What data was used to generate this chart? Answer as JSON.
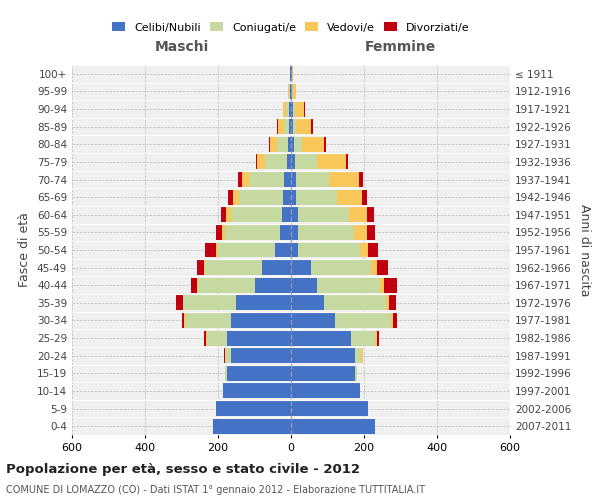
{
  "age_groups": [
    "0-4",
    "5-9",
    "10-14",
    "15-19",
    "20-24",
    "25-29",
    "30-34",
    "35-39",
    "40-44",
    "45-49",
    "50-54",
    "55-59",
    "60-64",
    "65-69",
    "70-74",
    "75-79",
    "80-84",
    "85-89",
    "90-94",
    "95-99",
    "100+"
  ],
  "birth_years": [
    "2007-2011",
    "2002-2006",
    "1997-2001",
    "1992-1996",
    "1987-1991",
    "1982-1986",
    "1977-1981",
    "1972-1976",
    "1967-1971",
    "1962-1966",
    "1957-1961",
    "1952-1956",
    "1947-1951",
    "1942-1946",
    "1937-1941",
    "1932-1936",
    "1927-1931",
    "1922-1926",
    "1917-1921",
    "1912-1916",
    "≤ 1911"
  ],
  "maschi": {
    "celibi": [
      215,
      205,
      185,
      175,
      165,
      175,
      165,
      150,
      100,
      80,
      45,
      30,
      25,
      22,
      20,
      12,
      8,
      5,
      5,
      3,
      2
    ],
    "coniugati": [
      0,
      0,
      0,
      5,
      15,
      55,
      125,
      145,
      155,
      155,
      155,
      150,
      140,
      120,
      95,
      60,
      30,
      15,
      8,
      2,
      0
    ],
    "vedovi": [
      0,
      0,
      0,
      0,
      1,
      2,
      2,
      2,
      2,
      3,
      5,
      8,
      12,
      18,
      20,
      20,
      20,
      15,
      10,
      3,
      1
    ],
    "divorziati": [
      0,
      0,
      0,
      0,
      2,
      5,
      8,
      18,
      18,
      20,
      30,
      18,
      15,
      12,
      10,
      5,
      3,
      2,
      0,
      0,
      0
    ]
  },
  "femmine": {
    "nubili": [
      230,
      210,
      190,
      175,
      175,
      165,
      120,
      90,
      70,
      55,
      20,
      18,
      18,
      15,
      15,
      12,
      8,
      5,
      5,
      3,
      2
    ],
    "coniugate": [
      0,
      0,
      0,
      5,
      18,
      65,
      155,
      170,
      175,
      165,
      170,
      155,
      140,
      110,
      90,
      60,
      22,
      10,
      5,
      2,
      0
    ],
    "vedove": [
      0,
      0,
      0,
      0,
      3,
      5,
      5,
      8,
      10,
      15,
      20,
      35,
      50,
      70,
      80,
      80,
      60,
      40,
      25,
      8,
      3
    ],
    "divorziate": [
      0,
      0,
      0,
      0,
      2,
      5,
      10,
      20,
      35,
      30,
      28,
      22,
      20,
      12,
      12,
      5,
      5,
      5,
      2,
      0,
      0
    ]
  },
  "colors": {
    "celibi": "#4472C4",
    "coniugati": "#C5D9A0",
    "vedovi": "#FAC85A",
    "divorziati": "#C0000E"
  },
  "xlim": 600,
  "title": "Popolazione per età, sesso e stato civile - 2012",
  "subtitle": "COMUNE DI LOMAZZO (CO) - Dati ISTAT 1° gennaio 2012 - Elaborazione TUTTITALIA.IT",
  "ylabel_left": "Fasce di età",
  "ylabel_right": "Anni di nascita",
  "xlabel_left": "Maschi",
  "xlabel_right": "Femmine",
  "background_color": "#ffffff",
  "grid_color": "#bbbbbb"
}
